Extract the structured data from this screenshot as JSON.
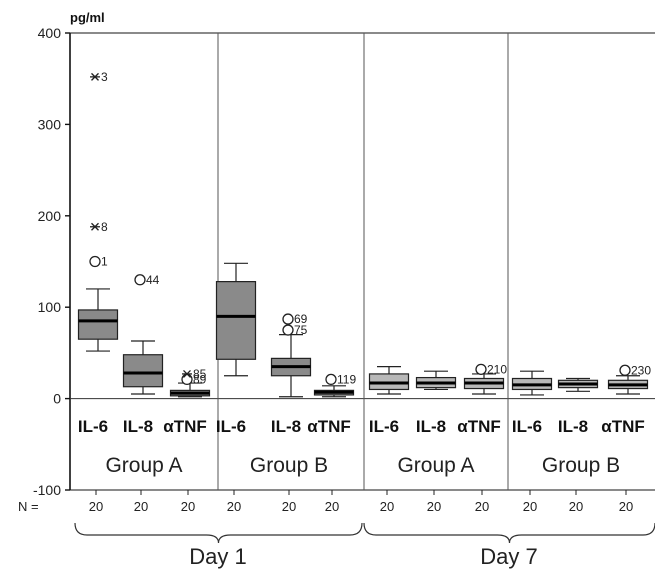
{
  "chart_data": {
    "type": "box",
    "y_unit_label": "pg/ml",
    "ylim": [
      -100,
      400
    ],
    "yticks": [
      -100,
      0,
      100,
      200,
      300,
      400
    ],
    "n_label": "N =",
    "grid": false,
    "boxes": [
      {
        "day": "Day 1",
        "group": "Group A",
        "label": "IL-6",
        "n": "20",
        "min": 52,
        "q1": 65,
        "median": 85,
        "q3": 97,
        "max": 120,
        "fill": "#8a8a8a",
        "outliers": [
          {
            "y": 150,
            "marker": "circle",
            "label": "1"
          },
          {
            "y": 188,
            "marker": "star",
            "label": "8"
          },
          {
            "y": 352,
            "marker": "star",
            "label": "3"
          }
        ]
      },
      {
        "day": "Day 1",
        "group": "Group A",
        "label": "IL-8",
        "n": "20",
        "min": 5,
        "q1": 13,
        "median": 28,
        "q3": 48,
        "max": 63,
        "fill": "#8a8a8a",
        "outliers": [
          {
            "y": 130,
            "marker": "circle",
            "label": "44"
          }
        ]
      },
      {
        "day": "Day 1",
        "group": "Group A",
        "label": "αTNF",
        "n": "20",
        "min": 2,
        "q1": 3,
        "median": 6,
        "q3": 9,
        "max": 17,
        "fill": "#8a8a8a",
        "outliers": [
          {
            "y": 21,
            "marker": "circle",
            "label": "89"
          },
          {
            "y": 27,
            "marker": "star",
            "label": "85"
          }
        ]
      },
      {
        "day": "Day 1",
        "group": "Group B",
        "label": "IL-6",
        "n": "20",
        "min": 25,
        "q1": 43,
        "median": 90,
        "q3": 128,
        "max": 148,
        "fill": "#8a8a8a",
        "outliers": []
      },
      {
        "day": "Day 1",
        "group": "Group B",
        "label": "IL-8",
        "n": "20",
        "min": 2,
        "q1": 25,
        "median": 35,
        "q3": 44,
        "max": 70,
        "fill": "#8a8a8a",
        "outliers": [
          {
            "y": 75,
            "marker": "circle",
            "label": "75"
          },
          {
            "y": 87,
            "marker": "circle",
            "label": "69"
          }
        ]
      },
      {
        "day": "Day 1",
        "group": "Group B",
        "label": "αTNF",
        "n": "20",
        "min": 2,
        "q1": 4,
        "median": 7,
        "q3": 9,
        "max": 14,
        "fill": "#8a8a8a",
        "outliers": [
          {
            "y": 21,
            "marker": "circle",
            "label": "119"
          }
        ]
      },
      {
        "day": "Day 7",
        "group": "Group A",
        "label": "IL-6",
        "n": "20",
        "min": 5,
        "q1": 10,
        "median": 17,
        "q3": 27,
        "max": 35,
        "fill": "#b8b8b8",
        "outliers": []
      },
      {
        "day": "Day 7",
        "group": "Group A",
        "label": "IL-8",
        "n": "20",
        "min": 10,
        "q1": 12,
        "median": 17,
        "q3": 23,
        "max": 30,
        "fill": "#b8b8b8",
        "outliers": []
      },
      {
        "day": "Day 7",
        "group": "Group A",
        "label": "αTNF",
        "n": "20",
        "min": 5,
        "q1": 11,
        "median": 17,
        "q3": 22,
        "max": 27,
        "fill": "#b8b8b8",
        "outliers": [
          {
            "y": 32,
            "marker": "circle",
            "label": "210"
          }
        ]
      },
      {
        "day": "Day 7",
        "group": "Group B",
        "label": "IL-6",
        "n": "20",
        "min": 4,
        "q1": 10,
        "median": 15,
        "q3": 22,
        "max": 30,
        "fill": "#b8b8b8",
        "outliers": []
      },
      {
        "day": "Day 7",
        "group": "Group B",
        "label": "IL-8",
        "n": "20",
        "min": 8,
        "q1": 12,
        "median": 16,
        "q3": 20,
        "max": 22,
        "fill": "#b8b8b8",
        "outliers": []
      },
      {
        "day": "Day 7",
        "group": "Group B",
        "label": "αTNF",
        "n": "20",
        "min": 5,
        "q1": 11,
        "median": 15,
        "q3": 20,
        "max": 25,
        "fill": "#b8b8b8",
        "outliers": [
          {
            "y": 31,
            "marker": "circle",
            "label": "230"
          }
        ]
      }
    ],
    "groups": [
      {
        "label": "Group A"
      },
      {
        "label": "Group B"
      },
      {
        "label": "Group A"
      },
      {
        "label": "Group B"
      }
    ],
    "days": [
      {
        "label": "Day 1"
      },
      {
        "label": "Day 7"
      }
    ]
  }
}
